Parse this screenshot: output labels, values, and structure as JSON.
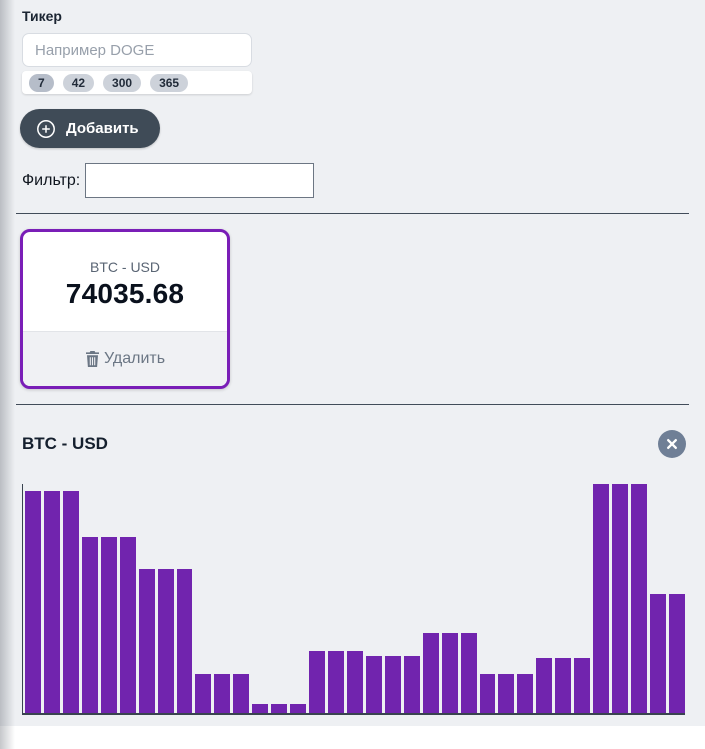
{
  "form": {
    "ticker_label": "Тикер",
    "ticker_placeholder": "Например DOGE",
    "periods": [
      "7",
      "42",
      "300",
      "365"
    ],
    "selected_period": "7",
    "add_button_label": "Добавить",
    "filter_label": "Фильтр:",
    "filter_value": ""
  },
  "ticker_card": {
    "pair": "BTC - USD",
    "price": "74035.68",
    "delete_button_label": "Удалить"
  },
  "chart_section": {
    "title": "BTC - USD"
  },
  "chart_data": {
    "type": "bar",
    "title": "BTC - USD",
    "values": [
      97,
      97,
      97,
      77,
      77,
      77,
      63,
      63,
      63,
      17,
      17,
      17,
      4,
      4,
      4,
      27,
      27,
      27,
      25,
      25,
      25,
      35,
      35,
      35,
      17,
      17,
      17,
      24,
      24,
      24,
      100,
      100,
      100,
      52,
      52
    ],
    "values_unit": "percent-of-max-bar-height",
    "xlabel": "",
    "ylabel": "",
    "tick_labels": "none",
    "grid": false,
    "legend": "none",
    "bar_color": "#7124ae",
    "axis_color": "#39434f"
  },
  "colors": {
    "page_background": "#eef0f3",
    "accent_purple": "#7a1eb7",
    "bar_purple": "#7124ae",
    "button_dark": "#3f4b57",
    "pill_gray": "#cdd2da",
    "pill_selected_gray": "#b6bdc9",
    "close_button_gray": "#6f7f96",
    "divider_dark": "#414c59",
    "muted_text": "#6b7684"
  }
}
